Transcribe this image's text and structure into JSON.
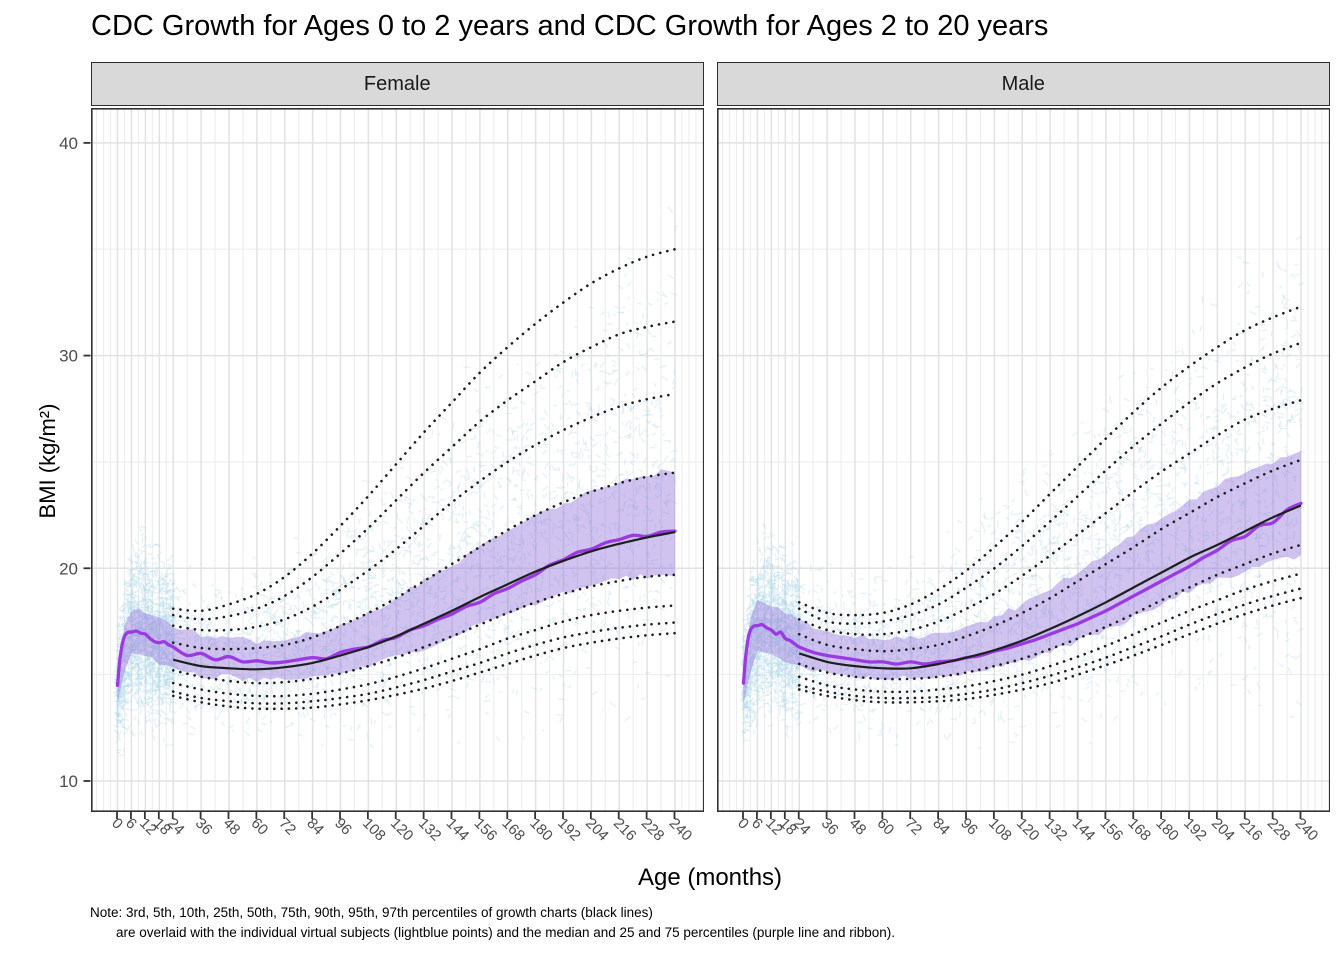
{
  "title": "CDC Growth for Ages 0 to 2 years and CDC Growth for Ages 2 to 20 years",
  "x_axis": {
    "label": "Age (months)"
  },
  "y_axis": {
    "label": "BMI (kg/m²)"
  },
  "note": {
    "line1": "Note: 3rd, 5th, 10th, 25th, 50th, 75th, 90th, 95th, 97th percentiles of growth charts (black lines)",
    "line2": "are overlaid with the individual virtual subjects (lightblue points) and the median and 25 and 75 percentiles (purple line and ribbon)."
  },
  "colors": {
    "median_line": "#9B39E3",
    "ribbon_fill": "#8F6FD8",
    "cloud": "#A7D8E8",
    "percentile_line": "#1F1F1F",
    "grid_major": "#E2E2E2",
    "grid_minor": "#EDEDED",
    "strip_bg": "#D9D9D9",
    "panel_border": "#333333",
    "tick_label": "#4D4D4D",
    "background": "#FFFFFF"
  },
  "chart_data": {
    "type": "line",
    "title": "CDC Growth for Ages 0 to 2 years and CDC Growth for Ages 2 to 20 years",
    "xlabel": "Age (months)",
    "ylabel": "BMI (kg/m²)",
    "legend": "none",
    "grid": true,
    "axes": {
      "x_breaks": [
        0,
        6,
        12,
        18,
        24,
        36,
        48,
        60,
        72,
        84,
        96,
        108,
        120,
        132,
        144,
        156,
        168,
        180,
        192,
        204,
        216,
        228,
        240
      ],
      "x_minor": [
        -9,
        -6,
        -3,
        3,
        9,
        15,
        21,
        30,
        42,
        54,
        66,
        78,
        90,
        102,
        114,
        126,
        138,
        150,
        162,
        174,
        186,
        198,
        210,
        222,
        234,
        243,
        246,
        249
      ],
      "y_breaks": [
        10,
        20,
        30,
        40
      ],
      "y_minor": [
        15,
        25,
        35
      ],
      "x_domain": [
        -11.4,
        252.7
      ],
      "y_domain": [
        8.55,
        41.64
      ]
    },
    "percentile_labels": [
      "3rd",
      "5th",
      "10th",
      "25th",
      "50th",
      "75th",
      "90th",
      "95th",
      "97th"
    ],
    "percentile_ages": [
      24,
      36,
      48,
      60,
      72,
      84,
      96,
      108,
      120,
      132,
      144,
      156,
      168,
      180,
      192,
      204,
      216,
      228,
      240
    ],
    "facets": [
      {
        "name": "Female",
        "percentiles": {
          "p3": [
            14.0,
            13.7,
            13.5,
            13.4,
            13.4,
            13.45,
            13.6,
            13.8,
            14.05,
            14.35,
            14.7,
            15.1,
            15.5,
            15.9,
            16.25,
            16.5,
            16.7,
            16.85,
            16.95
          ],
          "p5": [
            14.2,
            13.9,
            13.75,
            13.65,
            13.65,
            13.75,
            13.9,
            14.1,
            14.4,
            14.75,
            15.15,
            15.55,
            16.0,
            16.4,
            16.75,
            17.0,
            17.2,
            17.35,
            17.45
          ],
          "p10": [
            14.6,
            14.3,
            14.1,
            14.0,
            14.0,
            14.1,
            14.3,
            14.55,
            14.9,
            15.3,
            15.75,
            16.2,
            16.7,
            17.1,
            17.5,
            17.8,
            18.0,
            18.15,
            18.25
          ],
          "p25": [
            15.2,
            14.9,
            14.7,
            14.6,
            14.65,
            14.8,
            15.05,
            15.4,
            15.8,
            16.3,
            16.8,
            17.35,
            17.9,
            18.4,
            18.8,
            19.15,
            19.4,
            19.6,
            19.7
          ],
          "p50": [
            15.7,
            15.4,
            15.3,
            15.25,
            15.35,
            15.55,
            15.9,
            16.3,
            16.8,
            17.4,
            18.0,
            18.65,
            19.25,
            19.85,
            20.35,
            20.8,
            21.15,
            21.45,
            21.7
          ],
          "p75": [
            16.5,
            16.25,
            16.2,
            16.25,
            16.4,
            16.75,
            17.3,
            17.9,
            18.6,
            19.4,
            20.2,
            21.0,
            21.8,
            22.5,
            23.1,
            23.6,
            24.0,
            24.3,
            24.5
          ],
          "p90": [
            17.3,
            17.1,
            17.1,
            17.25,
            17.6,
            18.2,
            19.0,
            19.9,
            20.9,
            22.0,
            23.1,
            24.1,
            25.0,
            25.8,
            26.5,
            27.1,
            27.6,
            27.95,
            28.2
          ],
          "p95": [
            17.8,
            17.6,
            17.75,
            18.1,
            18.7,
            19.6,
            20.7,
            21.9,
            23.2,
            24.5,
            25.7,
            26.9,
            27.9,
            28.8,
            29.7,
            30.4,
            31.0,
            31.35,
            31.6
          ],
          "p97": [
            18.1,
            18.0,
            18.3,
            18.8,
            19.6,
            20.7,
            22.0,
            23.4,
            24.9,
            26.4,
            27.8,
            29.2,
            30.4,
            31.5,
            32.5,
            33.4,
            34.1,
            34.65,
            35.0
          ]
        },
        "median": {
          "x": [
            0,
            1,
            2,
            3,
            4,
            5,
            6,
            8,
            10,
            12,
            14,
            16,
            18,
            20,
            22,
            24,
            30,
            36,
            42,
            48,
            54,
            60,
            66,
            72,
            78,
            84,
            90,
            96,
            102,
            108,
            114,
            120,
            126,
            132,
            138,
            144,
            150,
            156,
            162,
            168,
            174,
            180,
            186,
            192,
            198,
            204,
            210,
            216,
            222,
            228,
            234,
            240
          ],
          "y": [
            14.5,
            15.7,
            16.4,
            16.8,
            16.95,
            17.0,
            17.0,
            17.05,
            16.95,
            16.9,
            16.7,
            16.55,
            16.5,
            16.55,
            16.4,
            16.3,
            15.9,
            16.0,
            15.7,
            15.85,
            15.6,
            15.65,
            15.55,
            15.6,
            15.7,
            15.8,
            15.75,
            16.05,
            16.2,
            16.3,
            16.6,
            16.75,
            17.1,
            17.3,
            17.6,
            17.85,
            18.2,
            18.4,
            18.8,
            19.05,
            19.4,
            19.7,
            20.15,
            20.4,
            20.75,
            20.9,
            21.2,
            21.35,
            21.55,
            21.5,
            21.7,
            21.75
          ]
        },
        "ribbon": {
          "x": [
            0,
            3,
            6,
            12,
            18,
            24,
            36,
            48,
            60,
            72,
            84,
            96,
            108,
            120,
            132,
            144,
            156,
            168,
            180,
            192,
            204,
            216,
            228,
            240
          ],
          "lo": [
            13.6,
            15.0,
            16.0,
            15.85,
            15.55,
            15.25,
            14.95,
            14.9,
            14.7,
            14.8,
            14.85,
            15.15,
            15.35,
            15.85,
            16.25,
            16.85,
            17.35,
            17.95,
            18.35,
            18.85,
            19.15,
            19.55,
            19.6,
            19.7
          ],
          "hi": [
            15.3,
            17.3,
            18.1,
            17.95,
            17.6,
            17.35,
            16.85,
            16.75,
            16.55,
            16.7,
            16.95,
            17.25,
            17.95,
            18.55,
            19.45,
            20.15,
            21.05,
            21.75,
            22.55,
            23.05,
            23.7,
            24.05,
            24.45,
            24.6
          ]
        },
        "cloud": {
          "seed": 7,
          "n": 4000,
          "x": [
            0,
            6,
            12,
            24,
            48,
            72,
            96,
            120,
            144,
            168,
            192,
            216,
            240
          ],
          "lo": [
            11.8,
            13.3,
            13.3,
            13.0,
            12.8,
            12.8,
            12.9,
            13.2,
            13.6,
            14.1,
            14.6,
            15.1,
            15.5
          ],
          "hi": [
            16.6,
            20.6,
            20.6,
            19.6,
            18.8,
            19.6,
            21.5,
            24.0,
            26.5,
            28.9,
            31.0,
            33.0,
            34.6
          ]
        }
      },
      {
        "name": "Male",
        "percentiles": {
          "p3": [
            14.3,
            14.0,
            13.8,
            13.7,
            13.7,
            13.75,
            13.85,
            14.05,
            14.3,
            14.6,
            15.0,
            15.45,
            15.9,
            16.4,
            16.9,
            17.4,
            17.85,
            18.25,
            18.6
          ],
          "p5": [
            14.5,
            14.2,
            14.0,
            13.9,
            13.9,
            13.95,
            14.1,
            14.3,
            14.6,
            14.95,
            15.35,
            15.8,
            16.3,
            16.8,
            17.35,
            17.85,
            18.3,
            18.7,
            19.05
          ],
          "p10": [
            14.9,
            14.5,
            14.3,
            14.2,
            14.2,
            14.3,
            14.45,
            14.7,
            15.0,
            15.4,
            15.85,
            16.35,
            16.9,
            17.45,
            18.0,
            18.5,
            19.0,
            19.4,
            19.75
          ],
          "p25": [
            15.5,
            15.1,
            14.9,
            14.8,
            14.8,
            14.9,
            15.1,
            15.4,
            15.75,
            16.2,
            16.7,
            17.25,
            17.85,
            18.5,
            19.1,
            19.7,
            20.2,
            20.7,
            21.1
          ],
          "p50": [
            16.0,
            15.6,
            15.4,
            15.3,
            15.3,
            15.5,
            15.8,
            16.15,
            16.6,
            17.15,
            17.75,
            18.4,
            19.1,
            19.8,
            20.5,
            21.1,
            21.75,
            22.4,
            22.95
          ],
          "p75": [
            16.9,
            16.4,
            16.2,
            16.1,
            16.2,
            16.4,
            16.8,
            17.3,
            17.9,
            18.6,
            19.4,
            20.2,
            21.0,
            21.85,
            22.6,
            23.35,
            24.0,
            24.6,
            25.1
          ],
          "p90": [
            17.6,
            17.1,
            16.9,
            16.9,
            17.1,
            17.5,
            18.1,
            18.8,
            19.65,
            20.6,
            21.6,
            22.6,
            23.6,
            24.55,
            25.4,
            26.25,
            27.0,
            27.5,
            27.9
          ],
          "p95": [
            18.1,
            17.5,
            17.4,
            17.5,
            17.8,
            18.3,
            19.1,
            20.0,
            21.05,
            22.2,
            23.4,
            24.6,
            25.75,
            26.8,
            27.8,
            28.7,
            29.45,
            30.1,
            30.6
          ],
          "p97": [
            18.4,
            17.9,
            17.8,
            17.9,
            18.3,
            19.0,
            19.9,
            21.0,
            22.2,
            23.5,
            24.8,
            26.1,
            27.35,
            28.5,
            29.5,
            30.4,
            31.2,
            31.8,
            32.3
          ]
        },
        "median": {
          "x": [
            0,
            1,
            2,
            3,
            4,
            5,
            6,
            8,
            10,
            12,
            14,
            16,
            18,
            20,
            22,
            24,
            30,
            36,
            42,
            48,
            54,
            60,
            66,
            72,
            78,
            84,
            90,
            96,
            102,
            108,
            114,
            120,
            126,
            132,
            138,
            144,
            150,
            156,
            162,
            168,
            174,
            180,
            186,
            192,
            198,
            204,
            210,
            216,
            222,
            228,
            234,
            240
          ],
          "y": [
            14.6,
            15.9,
            16.7,
            17.1,
            17.25,
            17.3,
            17.3,
            17.35,
            17.2,
            17.1,
            16.9,
            17.0,
            16.7,
            16.6,
            16.45,
            16.3,
            16.05,
            15.9,
            15.8,
            15.7,
            15.6,
            15.6,
            15.5,
            15.6,
            15.5,
            15.6,
            15.65,
            15.8,
            15.9,
            16.1,
            16.25,
            16.45,
            16.65,
            16.9,
            17.15,
            17.4,
            17.7,
            18.0,
            18.35,
            18.7,
            19.05,
            19.4,
            19.75,
            20.1,
            20.5,
            20.85,
            21.3,
            21.5,
            22.0,
            22.15,
            22.75,
            23.05
          ]
        },
        "ribbon": {
          "x": [
            0,
            3,
            6,
            12,
            18,
            24,
            36,
            48,
            60,
            72,
            84,
            96,
            108,
            120,
            132,
            144,
            156,
            168,
            180,
            192,
            204,
            216,
            228,
            240
          ],
          "lo": [
            13.7,
            15.2,
            16.1,
            15.95,
            15.6,
            15.35,
            15.05,
            14.95,
            14.8,
            14.8,
            14.9,
            15.05,
            15.4,
            15.65,
            16.15,
            16.55,
            17.15,
            17.7,
            18.35,
            18.9,
            19.45,
            19.9,
            20.3,
            20.6
          ],
          "hi": [
            15.5,
            17.6,
            18.5,
            18.3,
            17.9,
            17.5,
            17.05,
            16.8,
            16.7,
            16.75,
            16.9,
            17.2,
            17.7,
            18.3,
            19.05,
            19.8,
            20.7,
            21.6,
            22.45,
            23.2,
            23.9,
            24.5,
            25.0,
            25.45
          ]
        },
        "cloud": {
          "seed": 13,
          "n": 4000,
          "x": [
            0,
            6,
            12,
            24,
            48,
            72,
            96,
            120,
            144,
            168,
            192,
            216,
            240
          ],
          "lo": [
            11.9,
            13.5,
            13.5,
            13.2,
            12.9,
            12.9,
            13.0,
            13.2,
            13.6,
            14.2,
            14.8,
            15.5,
            16.0
          ],
          "hi": [
            16.8,
            20.9,
            20.9,
            19.8,
            18.9,
            19.5,
            21.2,
            23.4,
            25.8,
            28.2,
            30.3,
            32.2,
            33.9
          ]
        }
      }
    ]
  }
}
